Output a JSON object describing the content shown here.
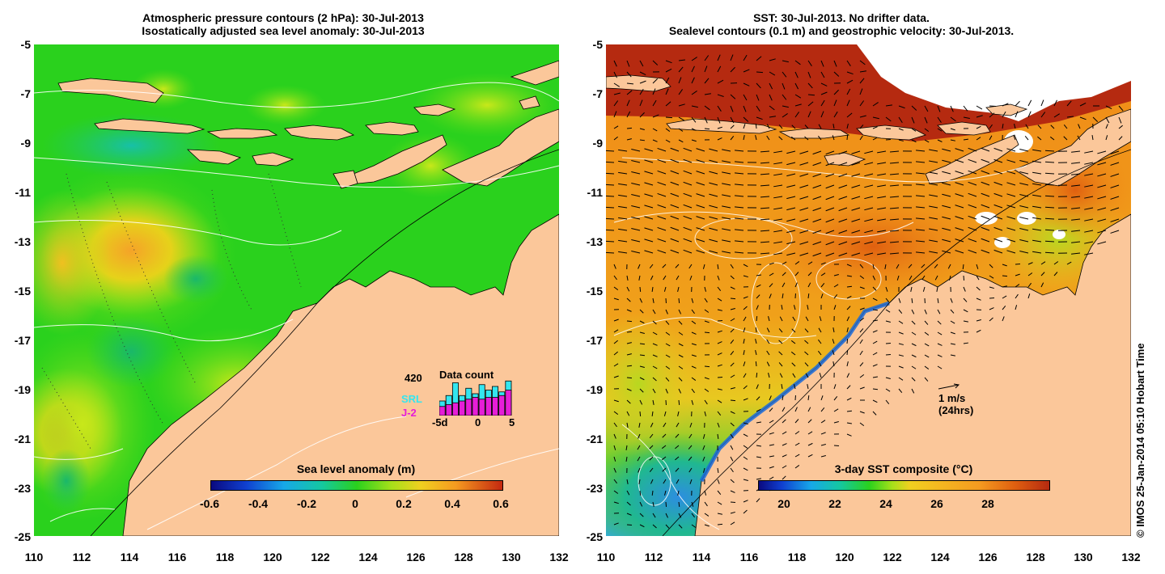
{
  "left_panel": {
    "title_line1": "Atmospheric pressure contours (2 hPa): 30-Jul-2013",
    "title_line2": "Isostatically adjusted sea level anomaly: 30-Jul-2013",
    "y_ticks": [
      "-5",
      "-7",
      "-9",
      "-11",
      "-13",
      "-15",
      "-17",
      "-19",
      "-21",
      "-23",
      "-25"
    ],
    "x_ticks": [
      "110",
      "112",
      "114",
      "116",
      "118",
      "120",
      "122",
      "124",
      "126",
      "128",
      "130",
      "132"
    ],
    "colorbar": {
      "title": "Sea level anomaly (m)",
      "ticks": [
        "-0.6",
        "-0.4",
        "-0.2",
        "0",
        "0.2",
        "0.4",
        "0.6"
      ]
    },
    "data_count": {
      "title": "Data count",
      "max_label": "420",
      "series_a": "SRL",
      "series_b": "J-2",
      "x_ticks": [
        "-5d",
        "0",
        "5"
      ],
      "srl_color": "#33e6f0",
      "j2_color": "#e61ed7",
      "bars": [
        {
          "srl": 0.4,
          "j2": 0.25
        },
        {
          "srl": 0.55,
          "j2": 0.3
        },
        {
          "srl": 0.9,
          "j2": 0.35
        },
        {
          "srl": 0.55,
          "j2": 0.4
        },
        {
          "srl": 0.75,
          "j2": 0.45
        },
        {
          "srl": 0.6,
          "j2": 0.5
        },
        {
          "srl": 0.85,
          "j2": 0.45
        },
        {
          "srl": 0.7,
          "j2": 0.5
        },
        {
          "srl": 0.8,
          "j2": 0.5
        },
        {
          "srl": 0.65,
          "j2": 0.55
        },
        {
          "srl": 0.95,
          "j2": 0.7
        }
      ]
    }
  },
  "right_panel": {
    "title_line1": "SST: 30-Jul-2013. No drifter data.",
    "title_line2": "Sealevel contours (0.1 m) and geostrophic velocity: 30-Jul-2013.",
    "y_ticks": [
      "-5",
      "-7",
      "-9",
      "-11",
      "-13",
      "-15",
      "-17",
      "-19",
      "-21",
      "-23",
      "-25"
    ],
    "x_ticks": [
      "110",
      "112",
      "114",
      "116",
      "118",
      "120",
      "122",
      "124",
      "126",
      "128",
      "130",
      "132"
    ],
    "velocity_scale": {
      "label": "1 m/s",
      "sublabel": "(24hrs)"
    },
    "colorbar": {
      "title": "3-day SST composite (°C)",
      "ticks": [
        "20",
        "22",
        "24",
        "26",
        "28"
      ]
    }
  },
  "credit": "© IMOS 25-Jan-2014 05:10 Hobart Time",
  "colors": {
    "land": "#fbc79a",
    "sla_base": "#2ad11d",
    "sst_base": "#f09a1a",
    "sst_warm": "#b52a10"
  }
}
